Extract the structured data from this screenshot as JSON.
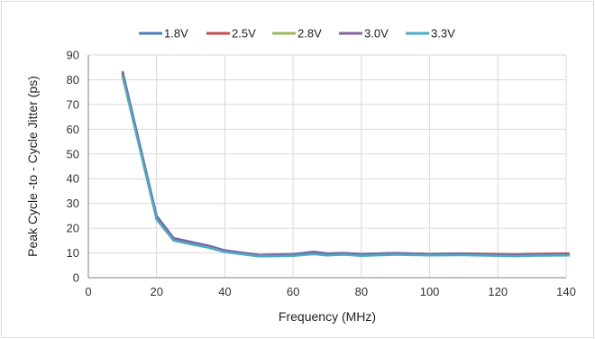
{
  "chart_data": {
    "type": "line",
    "title": "",
    "xlabel": "Frequency (MHz)",
    "ylabel": "Peak Cycle -to - Cycle Jitter (ps)",
    "xlim": [
      0,
      140
    ],
    "ylim": [
      0,
      90
    ],
    "x_ticks": [
      "0",
      "20",
      "40",
      "60",
      "80",
      "100",
      "120",
      "140"
    ],
    "y_ticks": [
      "0",
      "10",
      "20",
      "30",
      "40",
      "50",
      "60",
      "70",
      "80",
      "90"
    ],
    "grid": true,
    "legend_position": "top",
    "series": [
      {
        "name": "1.8V",
        "color": "#4a7ebb",
        "x": [
          10,
          20,
          25,
          30,
          35,
          40,
          50,
          60,
          66,
          70,
          75,
          80,
          90,
          100,
          110,
          120,
          125,
          130,
          141
        ],
        "y": [
          83,
          25,
          16,
          14.5,
          13,
          11,
          9.2,
          9.5,
          10.5,
          9.8,
          10,
          9.6,
          10,
          9.6,
          9.8,
          9.4,
          9.3,
          9.5,
          9.5
        ]
      },
      {
        "name": "2.5V",
        "color": "#c0504d",
        "x": [
          10,
          20,
          25,
          30,
          35,
          40,
          50,
          60,
          66,
          70,
          75,
          80,
          90,
          100,
          110,
          120,
          125,
          130,
          141
        ],
        "y": [
          82.5,
          24.5,
          15.8,
          14,
          12.8,
          10.8,
          9,
          9.2,
          10,
          9.5,
          9.8,
          9.4,
          9.8,
          9.6,
          9.7,
          9.5,
          9.4,
          9.6,
          9.8
        ]
      },
      {
        "name": "2.8V",
        "color": "#9bbb59",
        "x": [
          10,
          20,
          25,
          30,
          35,
          40,
          50,
          60,
          66,
          70,
          75,
          80,
          90,
          100,
          110,
          120,
          125,
          130,
          141
        ],
        "y": [
          82,
          24,
          15.5,
          13.8,
          12.5,
          10.6,
          8.8,
          9,
          9.8,
          9.4,
          9.6,
          9.2,
          9.6,
          9.3,
          9.4,
          9.1,
          9,
          9.2,
          9.3
        ]
      },
      {
        "name": "3.0V",
        "color": "#8064a2",
        "x": [
          10,
          20,
          25,
          30,
          35,
          40,
          50,
          60,
          66,
          70,
          75,
          80,
          90,
          100,
          110,
          120,
          125,
          130,
          141
        ],
        "y": [
          83.5,
          24.8,
          16,
          14.2,
          13,
          11,
          9.1,
          9.3,
          10.2,
          9.6,
          9.9,
          9.4,
          9.9,
          9.5,
          9.6,
          9.2,
          9.1,
          9.3,
          9.4
        ]
      },
      {
        "name": "3.3V",
        "color": "#4bacc6",
        "x": [
          10,
          20,
          25,
          30,
          35,
          40,
          50,
          60,
          66,
          70,
          75,
          80,
          90,
          100,
          110,
          120,
          125,
          130,
          141
        ],
        "y": [
          81.5,
          23.5,
          15,
          13.5,
          12.2,
          10.4,
          8.6,
          8.8,
          9.5,
          9,
          9.3,
          8.8,
          9.3,
          9,
          9.1,
          8.8,
          8.7,
          8.9,
          9
        ]
      }
    ]
  }
}
